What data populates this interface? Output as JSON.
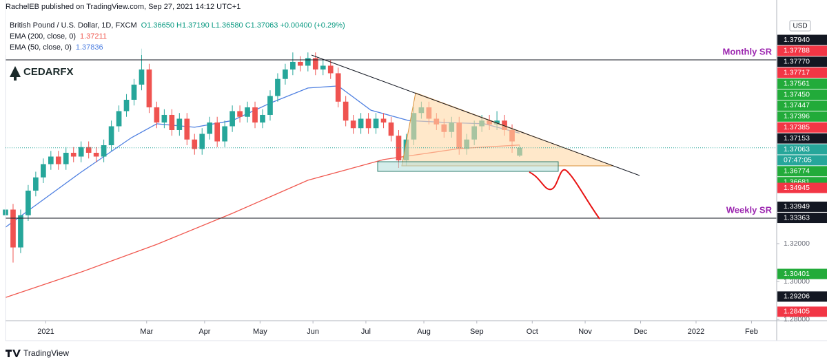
{
  "header": {
    "byline": "RachelEB published on TradingView.com, Sep 27, 2021 14:12 UTC+1",
    "symbol": "British Pound / U.S. Dollar, 1D, FXCM",
    "ohlc": "O1.36650 H1.37190 L1.36580 C1.37063 +0.00400 (+0.29%)"
  },
  "logo": "CEDARFX",
  "footer": "TradingView",
  "annotations": {
    "monthly_sr": "Monthly SR",
    "weekly_sr": "Weekly SR"
  },
  "chart_data": {
    "type": "candlestick",
    "x": [
      0,
      3,
      6,
      9,
      12,
      15,
      18,
      21,
      24,
      27,
      30,
      33,
      36,
      39,
      42,
      45,
      48,
      51,
      54,
      57,
      60,
      63,
      66,
      69,
      72,
      75,
      78,
      81,
      84,
      87,
      90,
      93,
      96,
      99,
      102,
      105,
      108,
      111,
      114,
      117,
      120,
      123,
      126,
      129,
      132,
      135,
      138,
      141,
      144,
      147,
      150,
      153,
      156,
      159,
      162,
      165,
      168,
      171,
      174,
      177,
      180,
      183,
      186,
      189,
      192,
      195,
      198,
      201,
      204
    ],
    "open": [
      1.335,
      1.338,
      1.318,
      1.335,
      1.348,
      1.355,
      1.362,
      1.366,
      1.362,
      1.368,
      1.366,
      1.371,
      1.368,
      1.366,
      1.372,
      1.382,
      1.39,
      1.396,
      1.404,
      1.412,
      1.392,
      1.384,
      1.388,
      1.38,
      1.386,
      1.375,
      1.37,
      1.378,
      1.384,
      1.374,
      1.382,
      1.39,
      1.387,
      1.392,
      1.384,
      1.388,
      1.398,
      1.407,
      1.412,
      1.416,
      1.414,
      1.418,
      1.412,
      1.414,
      1.41,
      1.395,
      1.385,
      1.381,
      1.386,
      1.381,
      1.386,
      1.384,
      1.377,
      1.364,
      1.375,
      1.389,
      1.392,
      1.386,
      1.383,
      1.379,
      1.384,
      1.37,
      1.375,
      1.382,
      1.385,
      1.383,
      1.385,
      1.38,
      1.3665
    ],
    "high": [
      1.341,
      1.341,
      1.338,
      1.351,
      1.358,
      1.365,
      1.369,
      1.369,
      1.371,
      1.371,
      1.374,
      1.374,
      1.371,
      1.375,
      1.385,
      1.393,
      1.399,
      1.407,
      1.423,
      1.415,
      1.395,
      1.391,
      1.391,
      1.389,
      1.389,
      1.378,
      1.381,
      1.387,
      1.387,
      1.385,
      1.393,
      1.393,
      1.395,
      1.395,
      1.391,
      1.401,
      1.41,
      1.415,
      1.421,
      1.419,
      1.421,
      1.421,
      1.417,
      1.417,
      1.413,
      1.398,
      1.388,
      1.389,
      1.389,
      1.389,
      1.389,
      1.387,
      1.38,
      1.378,
      1.392,
      1.395,
      1.395,
      1.389,
      1.386,
      1.387,
      1.387,
      1.378,
      1.385,
      1.388,
      1.388,
      1.39,
      1.388,
      1.383,
      1.3719
    ],
    "low": [
      1.332,
      1.31,
      1.315,
      1.332,
      1.345,
      1.352,
      1.359,
      1.359,
      1.359,
      1.363,
      1.363,
      1.365,
      1.363,
      1.363,
      1.369,
      1.379,
      1.387,
      1.393,
      1.401,
      1.389,
      1.381,
      1.381,
      1.377,
      1.377,
      1.372,
      1.367,
      1.367,
      1.375,
      1.371,
      1.371,
      1.379,
      1.384,
      1.384,
      1.381,
      1.381,
      1.385,
      1.395,
      1.404,
      1.409,
      1.411,
      1.411,
      1.409,
      1.409,
      1.407,
      1.392,
      1.382,
      1.378,
      1.378,
      1.378,
      1.378,
      1.381,
      1.374,
      1.36,
      1.361,
      1.372,
      1.386,
      1.383,
      1.38,
      1.376,
      1.376,
      1.367,
      1.367,
      1.372,
      1.379,
      1.38,
      1.38,
      1.377,
      1.368,
      1.3658
    ],
    "close": [
      1.338,
      1.318,
      1.335,
      1.348,
      1.355,
      1.362,
      1.366,
      1.362,
      1.368,
      1.366,
      1.371,
      1.368,
      1.366,
      1.372,
      1.382,
      1.39,
      1.396,
      1.404,
      1.412,
      1.392,
      1.384,
      1.388,
      1.38,
      1.386,
      1.375,
      1.37,
      1.378,
      1.384,
      1.374,
      1.382,
      1.39,
      1.387,
      1.392,
      1.384,
      1.388,
      1.398,
      1.407,
      1.412,
      1.416,
      1.414,
      1.418,
      1.412,
      1.414,
      1.41,
      1.395,
      1.385,
      1.381,
      1.386,
      1.381,
      1.386,
      1.384,
      1.377,
      1.364,
      1.375,
      1.389,
      1.392,
      1.386,
      1.383,
      1.379,
      1.384,
      1.37,
      1.375,
      1.382,
      1.385,
      1.383,
      1.385,
      1.38,
      1.374,
      1.37063
    ],
    "up_color": "#26a69a",
    "down_color": "#ef5350",
    "series": [
      {
        "name": "EMA (200, close, 0)",
        "legend_value": "1.37211",
        "color": "#f0584f",
        "x": [
          0,
          30,
          60,
          90,
          120,
          150,
          180,
          204
        ],
        "values": [
          1.2916,
          1.305,
          1.3196,
          1.336,
          1.3535,
          1.3644,
          1.3702,
          1.37211
        ]
      },
      {
        "name": "EMA (50, close, 0)",
        "legend_value": "1.37836",
        "color": "#4f80e1",
        "x": [
          0,
          30,
          50,
          60,
          75,
          90,
          105,
          120,
          132,
          145,
          160,
          175,
          190,
          204
        ],
        "values": [
          1.3287,
          1.3578,
          1.376,
          1.3833,
          1.3815,
          1.385,
          1.3942,
          1.4022,
          1.4033,
          1.3905,
          1.385,
          1.384,
          1.3833,
          1.37836
        ]
      }
    ],
    "xlim": [
      0,
      306
    ],
    "xticks": [
      {
        "value": 16,
        "label": "2021"
      },
      {
        "value": 56,
        "label": "Mar"
      },
      {
        "value": 79,
        "label": "Apr"
      },
      {
        "value": 101,
        "label": "May"
      },
      {
        "value": 122,
        "label": "Jun"
      },
      {
        "value": 143,
        "label": "Jul"
      },
      {
        "value": 166,
        "label": "Aug"
      },
      {
        "value": 187,
        "label": "Sep"
      },
      {
        "value": 209,
        "label": "Oct"
      },
      {
        "value": 230,
        "label": "Nov"
      },
      {
        "value": 252,
        "label": "Dec"
      },
      {
        "value": 274,
        "label": "2022"
      },
      {
        "value": 296,
        "label": "Feb"
      }
    ],
    "ylim": [
      1.2793,
      1.4487
    ],
    "yticks": [
      {
        "value": 1.32,
        "label": "1.32000"
      },
      {
        "value": 1.3,
        "label": "1.30000"
      },
      {
        "value": 1.28,
        "label": "1.28000"
      }
    ],
    "currency": "USD",
    "countdown": "07:47:05",
    "current_price": {
      "value": 1.37063,
      "label": "1.37063",
      "color": "#26a69a"
    },
    "price_labels": [
      {
        "value": 1.3794,
        "label": "1.37940",
        "color": "#131722"
      },
      {
        "value": 1.37788,
        "label": "1.37788",
        "color": "#f23645"
      },
      {
        "value": 1.3777,
        "label": "1.37770",
        "color": "#131722"
      },
      {
        "value": 1.37717,
        "label": "1.37717",
        "color": "#f23645"
      },
      {
        "value": 1.37561,
        "label": "1.37561",
        "color": "#22ab3a"
      },
      {
        "value": 1.3745,
        "label": "1.37450",
        "color": "#22ab3a"
      },
      {
        "value": 1.37447,
        "label": "1.37447",
        "color": "#22ab3a"
      },
      {
        "value": 1.37396,
        "label": "1.37396",
        "color": "#22ab3a"
      },
      {
        "value": 1.37385,
        "label": "1.37385",
        "color": "#f23645"
      },
      {
        "value": 1.37153,
        "label": "1.37153",
        "color": "#131722"
      },
      {
        "value": 1.36774,
        "label": "1.36774",
        "color": "#22ab3a"
      },
      {
        "value": 1.36681,
        "label": "1.36681",
        "color": "#22ab3a"
      },
      {
        "value": 1.34945,
        "label": "1.34945",
        "color": "#f23645"
      },
      {
        "value": 1.33949,
        "label": "1.33949",
        "color": "#131722"
      },
      {
        "value": 1.33363,
        "label": "1.33363",
        "color": "#131722"
      },
      {
        "value": 1.30401,
        "label": "1.30401",
        "color": "#22ab3a"
      },
      {
        "value": 1.29206,
        "label": "1.29206",
        "color": "#131722"
      },
      {
        "value": 1.28405,
        "label": "1.28405",
        "color": "#f23645"
      }
    ]
  }
}
